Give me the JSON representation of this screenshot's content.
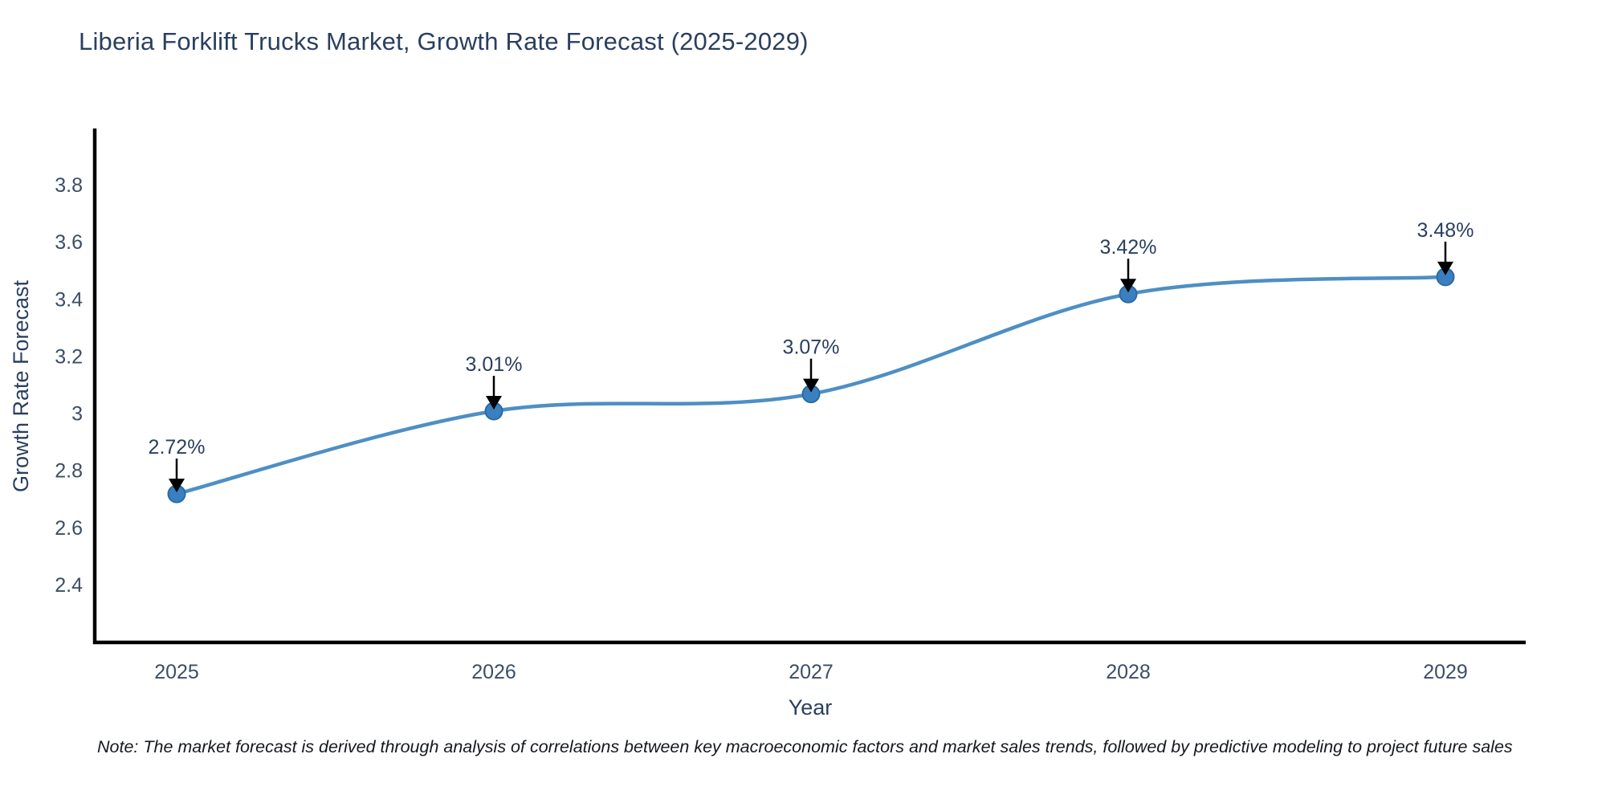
{
  "title": "Liberia Forklift Trucks Market, Growth Rate Forecast (2025-2029)",
  "note": "Note: The market forecast is derived through analysis of correlations between key macroeconomic factors and market sales trends, followed by predictive modeling to project future sales",
  "chart_data": {
    "type": "line",
    "title": "Liberia Forklift Trucks Market, Growth Rate Forecast (2025-2029)",
    "xlabel": "Year",
    "ylabel": "Growth Rate Forecast",
    "x": [
      2025,
      2026,
      2027,
      2028,
      2029
    ],
    "xticks": [
      "2025",
      "2026",
      "2027",
      "2028",
      "2029"
    ],
    "values": [
      2.72,
      3.01,
      3.07,
      3.42,
      3.48
    ],
    "point_labels": [
      "2.72%",
      "3.01%",
      "3.07%",
      "3.42%",
      "3.48%"
    ],
    "ylim": [
      2.2,
      4.0
    ],
    "yticks": [
      2.4,
      2.6,
      2.8,
      3,
      3.2,
      3.4,
      3.6,
      3.8
    ],
    "line_shape": "spline",
    "grid": false,
    "legend": "none",
    "colors": {
      "line": "#4e8fc4",
      "marker": "#3a80c0",
      "marker_edge": "#2a6aa5",
      "axis": "#000000",
      "tick_text": "#3c4e66",
      "annotation_text": "#2a3f5f",
      "arrow": "#000000"
    }
  }
}
